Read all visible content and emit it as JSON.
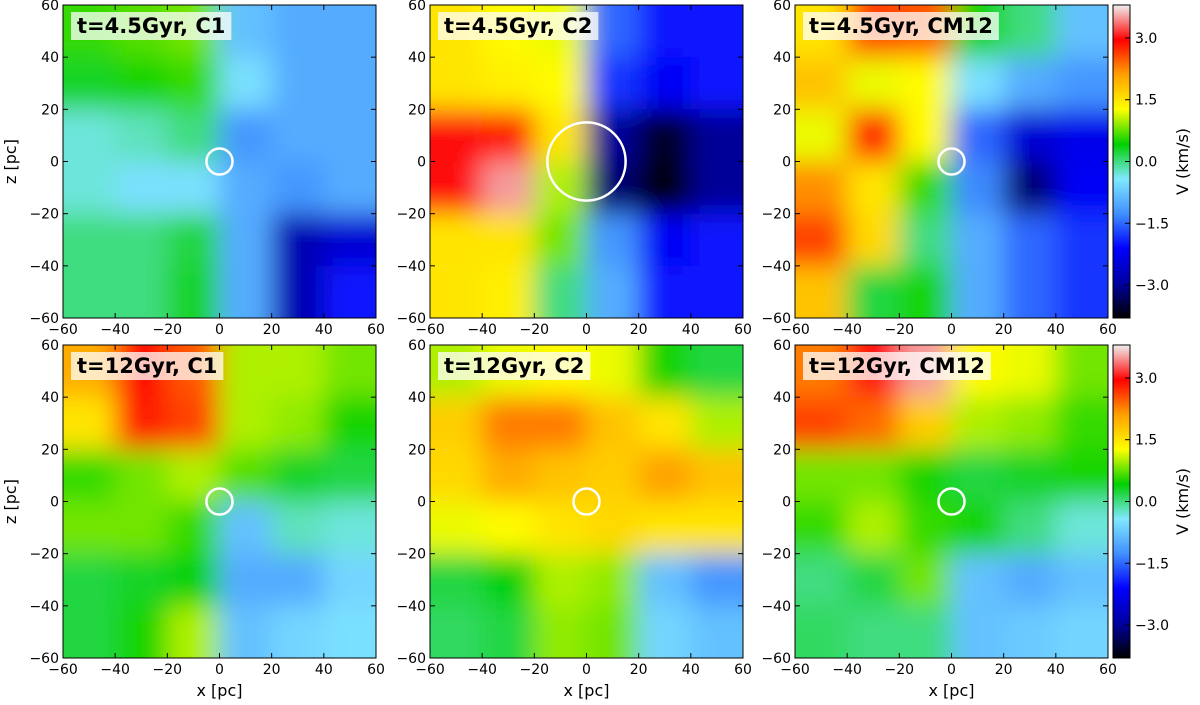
{
  "chart_data": [
    {
      "type": "heatmap",
      "title": "t=4.5Gyr, C1",
      "ylabel": "z [pc]",
      "x": [
        -50,
        -30,
        -10,
        10,
        30,
        50
      ],
      "y": [
        50,
        30,
        10,
        -10,
        -30,
        -50
      ],
      "values": [
        [
          0.6,
          0.7,
          0.8,
          -0.8,
          -1,
          -1
        ],
        [
          0.3,
          0.5,
          0.6,
          -0.5,
          -1,
          -1
        ],
        [
          -0.3,
          -0.2,
          0,
          -1.2,
          -1,
          -1
        ],
        [
          -0.3,
          -0.5,
          -0.5,
          -1,
          -1.2,
          -1
        ],
        [
          0,
          0,
          0.2,
          -1,
          -2.8,
          -2.5
        ],
        [
          0,
          0,
          0.3,
          -1,
          -2.8,
          -2
        ]
      ],
      "circle": {
        "x": 0,
        "z": 0,
        "r": 5
      },
      "xlim": [
        -60,
        60
      ],
      "ylim": [
        -60,
        60
      ],
      "xticks": [
        {
          "value": -60,
          "label": "−60"
        },
        {
          "value": -40,
          "label": "−40"
        },
        {
          "value": -20,
          "label": "−20"
        },
        0,
        20,
        40,
        60
      ],
      "yticks": [
        {
          "value": -60,
          "label": "−60"
        },
        {
          "value": -40,
          "label": "−40"
        },
        {
          "value": -20,
          "label": "−20"
        },
        0,
        20,
        40,
        60
      ]
    },
    {
      "type": "heatmap",
      "title": "t=4.5Gyr, C2",
      "x": [
        -50,
        -30,
        -10,
        10,
        30,
        50
      ],
      "y": [
        50,
        30,
        10,
        -10,
        -30,
        -50
      ],
      "values": [
        [
          1.5,
          1.3,
          1.2,
          -1.5,
          -2,
          -2
        ],
        [
          1.5,
          1.4,
          1.3,
          -1.8,
          -2.2,
          -2
        ],
        [
          3,
          2.8,
          1.5,
          -3,
          -3.6,
          -3
        ],
        [
          3,
          3.5,
          1,
          -3.2,
          -3.8,
          -3
        ],
        [
          1.5,
          1.5,
          0.8,
          -1.2,
          -2.2,
          -2
        ],
        [
          1.5,
          1.4,
          0,
          -1,
          -2,
          -2
        ]
      ],
      "circle": {
        "x": 0,
        "z": 0,
        "r": 15
      },
      "xlim": [
        -60,
        60
      ],
      "ylim": [
        -60,
        60
      ],
      "xticks": [
        {
          "value": -60,
          "label": "−60"
        },
        {
          "value": -40,
          "label": "−40"
        },
        {
          "value": -20,
          "label": "−20"
        },
        0,
        20,
        40,
        60
      ],
      "yticks": [
        {
          "value": -60,
          "label": "−60"
        },
        {
          "value": -40,
          "label": "−40"
        },
        {
          "value": -20,
          "label": "−20"
        },
        0,
        20,
        40,
        60
      ]
    },
    {
      "type": "heatmap",
      "title": "t=4.5Gyr, CM12",
      "x": [
        -50,
        -30,
        -10,
        10,
        30,
        50
      ],
      "y": [
        50,
        30,
        10,
        -10,
        -30,
        -50
      ],
      "values": [
        [
          1.5,
          2.6,
          2.5,
          0.5,
          0,
          -0.8
        ],
        [
          1.8,
          1.2,
          1.3,
          -0.5,
          -1,
          -1.2
        ],
        [
          1.2,
          2.8,
          1.3,
          -1.5,
          -2.5,
          -2.3
        ],
        [
          2.2,
          1.5,
          0.6,
          -1.3,
          -3.2,
          -2.2
        ],
        [
          2.6,
          1.6,
          0,
          -1,
          -1.5,
          -1.8
        ],
        [
          1.8,
          0.2,
          0.5,
          -1,
          -1.5,
          -1.8
        ]
      ],
      "circle": {
        "x": 0,
        "z": 0,
        "r": 5
      },
      "xlim": [
        -60,
        60
      ],
      "ylim": [
        -60,
        60
      ],
      "xticks": [
        {
          "value": -60,
          "label": "−60"
        },
        {
          "value": -40,
          "label": "−40"
        },
        {
          "value": -20,
          "label": "−20"
        },
        0,
        20,
        40,
        60
      ],
      "yticks": [
        {
          "value": -60,
          "label": "−60"
        },
        {
          "value": -40,
          "label": "−40"
        },
        {
          "value": -20,
          "label": "−20"
        },
        0,
        20,
        40,
        60
      ]
    },
    {
      "type": "heatmap",
      "title": "t=12Gyr, C1",
      "xlabel": "x [pc]",
      "ylabel": "z [pc]",
      "x": [
        -50,
        -30,
        -10,
        10,
        30,
        50
      ],
      "y": [
        50,
        30,
        10,
        -10,
        -30,
        -50
      ],
      "values": [
        [
          2,
          2.9,
          2.5,
          1,
          1,
          0.8
        ],
        [
          1.5,
          2.8,
          2.6,
          1,
          0.9,
          0.5
        ],
        [
          0.6,
          0.8,
          1,
          0.7,
          0.3,
          0.2
        ],
        [
          0.8,
          0.8,
          0.6,
          -0.8,
          -0.2,
          -0.3
        ],
        [
          0.2,
          0.3,
          0.4,
          -1,
          -1,
          -0.6
        ],
        [
          0.2,
          0.5,
          1,
          -0.8,
          -0.6,
          -0.5
        ]
      ],
      "circle": {
        "x": 0,
        "z": 0,
        "r": 5
      },
      "xlim": [
        -60,
        60
      ],
      "ylim": [
        -60,
        60
      ],
      "xticks": [
        {
          "value": -60,
          "label": "−60"
        },
        {
          "value": -40,
          "label": "−40"
        },
        {
          "value": -20,
          "label": "−20"
        },
        0,
        20,
        40,
        60
      ],
      "yticks": [
        {
          "value": -60,
          "label": "−60"
        },
        {
          "value": -40,
          "label": "−40"
        },
        {
          "value": -20,
          "label": "−20"
        },
        0,
        20,
        40,
        60
      ]
    },
    {
      "type": "heatmap",
      "title": "t=12Gyr, C2",
      "xlabel": "x [pc]",
      "x": [
        -50,
        -30,
        -10,
        10,
        30,
        50
      ],
      "y": [
        50,
        30,
        10,
        -10,
        -30,
        -50
      ],
      "values": [
        [
          1,
          1.2,
          1.3,
          1.2,
          0.5,
          0.2
        ],
        [
          1.7,
          2.3,
          2.3,
          1.8,
          1.5,
          1
        ],
        [
          1.6,
          2,
          1.8,
          1.7,
          2.1,
          1.8
        ],
        [
          1.2,
          1.3,
          1.5,
          1.6,
          1.5,
          1.5
        ],
        [
          0.2,
          0.4,
          1,
          0.9,
          -0.8,
          -1.2
        ],
        [
          0.1,
          0.2,
          0.9,
          0.8,
          -0.6,
          -0.8
        ]
      ],
      "circle": {
        "x": 0,
        "z": 0,
        "r": 5
      },
      "xlim": [
        -60,
        60
      ],
      "ylim": [
        -60,
        60
      ],
      "xticks": [
        {
          "value": -60,
          "label": "−60"
        },
        {
          "value": -40,
          "label": "−40"
        },
        {
          "value": -20,
          "label": "−20"
        },
        0,
        20,
        40,
        60
      ],
      "yticks": [
        {
          "value": -60,
          "label": "−60"
        },
        {
          "value": -40,
          "label": "−40"
        },
        {
          "value": -20,
          "label": "−20"
        },
        0,
        20,
        40,
        60
      ]
    },
    {
      "type": "heatmap",
      "title": "t=12Gyr, CM12",
      "xlabel": "x [pc]",
      "x": [
        -50,
        -30,
        -10,
        10,
        30,
        50
      ],
      "y": [
        50,
        30,
        10,
        -10,
        -30,
        -50
      ],
      "values": [
        [
          2.3,
          3,
          3.5,
          1.3,
          1.2,
          0.8
        ],
        [
          2.6,
          2.4,
          1.7,
          1,
          0.9,
          0.6
        ],
        [
          0.8,
          0.8,
          0.5,
          0.2,
          0.3,
          0.5
        ],
        [
          0.6,
          1,
          0.6,
          0.5,
          0,
          -0.3
        ],
        [
          0,
          0.2,
          0.8,
          -0.8,
          -1,
          -0.8
        ],
        [
          0.1,
          0,
          0,
          -0.8,
          -0.7,
          -0.6
        ]
      ],
      "circle": {
        "x": 0,
        "z": 0,
        "r": 5
      },
      "xlim": [
        -60,
        60
      ],
      "ylim": [
        -60,
        60
      ],
      "xticks": [
        {
          "value": -60,
          "label": "−60"
        },
        {
          "value": -40,
          "label": "−40"
        },
        {
          "value": -20,
          "label": "−20"
        },
        0,
        20,
        40,
        60
      ],
      "yticks": [
        {
          "value": -60,
          "label": "−60"
        },
        {
          "value": -40,
          "label": "−40"
        },
        {
          "value": -20,
          "label": "−20"
        },
        0,
        20,
        40,
        60
      ]
    },
    {
      "type": "colorbar",
      "label": "V (km/s)",
      "range": [
        -3.8,
        3.8
      ],
      "colormap": [
        "#000000",
        "#0000a0",
        "#0000ff",
        "#4090ff",
        "#80e8ff",
        "#00d000",
        "#ffff00",
        "#ffa000",
        "#ff0000",
        "#f0f0f0"
      ],
      "ticks": [
        {
          "value": -3,
          "label": "−3.0"
        },
        {
          "value": -1.5,
          "label": "−1.5"
        },
        {
          "value": 0,
          "label": "0.0"
        },
        {
          "value": 1.5,
          "label": "1.5"
        },
        {
          "value": 3,
          "label": "3.0"
        }
      ]
    },
    {
      "type": "colorbar",
      "label": "V (km/s)",
      "range": [
        -3.8,
        3.8
      ],
      "colormap": [
        "#000000",
        "#0000a0",
        "#0000ff",
        "#4090ff",
        "#80e8ff",
        "#00d000",
        "#ffff00",
        "#ffa000",
        "#ff0000",
        "#f0f0f0"
      ],
      "ticks": [
        {
          "value": -3,
          "label": "−3.0"
        },
        {
          "value": -1.5,
          "label": "−1.5"
        },
        {
          "value": 0,
          "label": "0.0"
        },
        {
          "value": 1.5,
          "label": "1.5"
        },
        {
          "value": 3,
          "label": "3.0"
        }
      ]
    }
  ]
}
